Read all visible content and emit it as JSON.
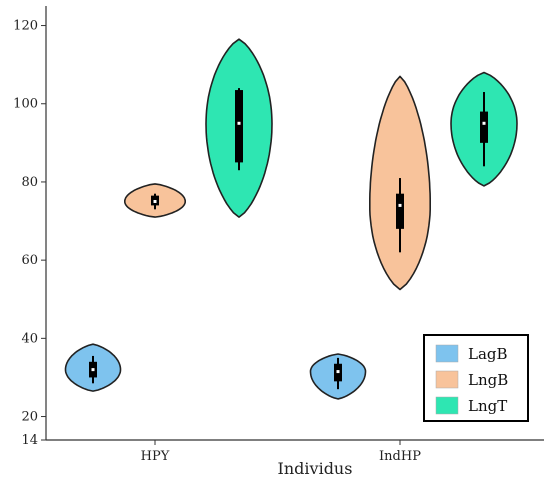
{
  "chart_data": {
    "type": "violin",
    "xlabel": "Individus",
    "ylabel": "",
    "title": "",
    "categories": [
      "HPY",
      "IndHP"
    ],
    "y_ticks": [
      14,
      20,
      40,
      60,
      80,
      100,
      120
    ],
    "ylim": [
      14,
      125
    ],
    "grid": false,
    "legend_position": "bottom-right",
    "series": [
      {
        "name": "LagB",
        "color": "#7ec3ee",
        "groups": [
          {
            "category": "HPY",
            "min": 26.5,
            "max": 38.5,
            "q1": 30,
            "median": 32,
            "q3": 34,
            "whisker_low": 28.5,
            "whisker_high": 35.5,
            "max_half_width": 0.5
          },
          {
            "category": "IndHP",
            "min": 24.5,
            "max": 36,
            "q1": 29,
            "median": 31.5,
            "q3": 33.5,
            "whisker_low": 27,
            "whisker_high": 35,
            "max_half_width": 0.5
          }
        ]
      },
      {
        "name": "LngB",
        "color": "#f8c39b",
        "groups": [
          {
            "category": "HPY",
            "min": 71,
            "max": 79.5,
            "q1": 74,
            "median": 75,
            "q3": 76.5,
            "whisker_low": 73,
            "whisker_high": 77,
            "max_half_width": 0.55
          },
          {
            "category": "IndHP",
            "min": 52.5,
            "max": 107,
            "q1": 68,
            "median": 74,
            "q3": 77,
            "whisker_low": 62,
            "whisker_high": 81,
            "max_half_width": 0.55
          }
        ]
      },
      {
        "name": "LngT",
        "color": "#2ee6b2",
        "groups": [
          {
            "category": "HPY",
            "min": 71,
            "max": 116.5,
            "q1": 85,
            "median": 95,
            "q3": 103.5,
            "whisker_low": 83,
            "whisker_high": 104,
            "max_half_width": 0.6
          },
          {
            "category": "IndHP",
            "min": 79,
            "max": 108,
            "q1": 90,
            "median": 95,
            "q3": 98,
            "whisker_low": 84,
            "whisker_high": 103,
            "max_half_width": 0.6
          }
        ]
      }
    ]
  }
}
